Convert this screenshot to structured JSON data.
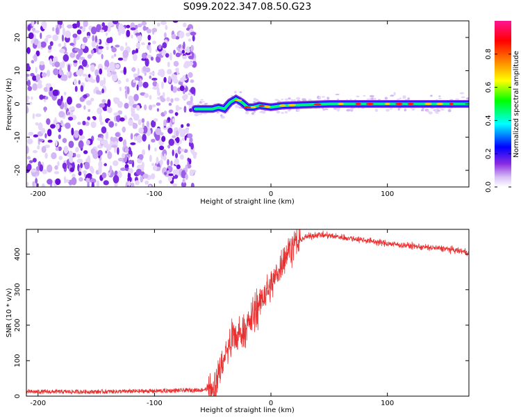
{
  "title": "S099.2022.347.08.50.G23",
  "chart_data": [
    {
      "type": "heatmap",
      "xlabel": "Height of straight line (km)",
      "ylabel": "Frequency (Hz)",
      "xlim": [
        -210,
        170
      ],
      "ylim": [
        -25,
        25
      ],
      "xticks": [
        -200,
        -100,
        0,
        100
      ],
      "yticks": [
        -20,
        -10,
        0,
        10,
        20
      ],
      "colorbar": {
        "label": "Normalized spectral amplitude",
        "range": [
          0,
          1
        ],
        "ticks": [
          0.0,
          0.2,
          0.4,
          0.6,
          0.8
        ],
        "tick_labels": [
          "0.0",
          "0.2",
          "0.4",
          "0.6",
          "0.8"
        ],
        "colors": [
          "#ffffff",
          "#8a2be2",
          "#0000ff",
          "#00ffff",
          "#00ff00",
          "#ffff00",
          "#ff8000",
          "#ff0000",
          "#ff1493"
        ]
      },
      "noise_region_x": [
        -210,
        -65
      ],
      "signal_ridge": {
        "x": [
          -65,
          -60,
          -50,
          -45,
          -40,
          -35,
          -30,
          -25,
          -20,
          -15,
          -10,
          0,
          10,
          50,
          100,
          170
        ],
        "y": [
          -1.5,
          -1.5,
          -1.5,
          -1.0,
          -1.5,
          0.5,
          1.5,
          0.5,
          -1.0,
          -1.0,
          -0.5,
          -1.0,
          -0.5,
          0.0,
          0.0,
          0.0
        ]
      }
    },
    {
      "type": "line",
      "xlabel": "Height of straight line (km)",
      "ylabel": "SNR (10 * v/v)",
      "xlim": [
        -210,
        170
      ],
      "ylim": [
        0,
        470
      ],
      "xticks": [
        -200,
        -100,
        0,
        100
      ],
      "yticks": [
        0,
        100,
        200,
        300,
        400
      ],
      "color": "#e83030",
      "series": [
        {
          "x": [
            -210,
            -150,
            -100,
            -60,
            -50,
            -45,
            -40,
            -35,
            -30,
            -25,
            -20,
            -15,
            -10,
            -5,
            0,
            5,
            10,
            15,
            20,
            25,
            30,
            40,
            50,
            60,
            80,
            100,
            130,
            150,
            170
          ],
          "values": [
            10,
            10,
            12,
            15,
            20,
            60,
            110,
            150,
            165,
            180,
            200,
            225,
            260,
            290,
            310,
            345,
            380,
            410,
            430,
            440,
            448,
            455,
            452,
            448,
            440,
            430,
            420,
            415,
            405
          ]
        }
      ]
    }
  ]
}
